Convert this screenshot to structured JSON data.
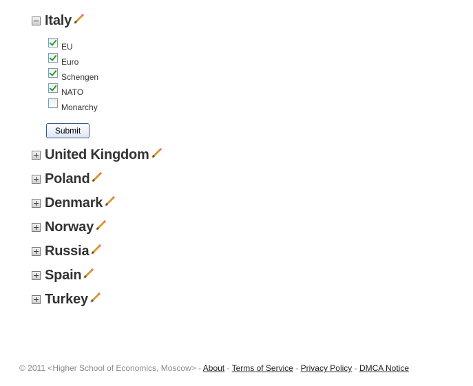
{
  "tree": {
    "expanded_country": {
      "name": "Italy",
      "checkboxes": [
        {
          "label": "EU",
          "checked": true
        },
        {
          "label": "Euro",
          "checked": true
        },
        {
          "label": "Schengen",
          "checked": true
        },
        {
          "label": "NATO",
          "checked": true
        },
        {
          "label": "Monarchy",
          "checked": false
        }
      ],
      "submit_label": "Submit"
    },
    "collapsed_countries": [
      "United Kingdom",
      "Poland",
      "Denmark",
      "Norway",
      "Russia",
      "Spain",
      "Turkey"
    ],
    "edit_icon": "pencil-icon",
    "expand_icon": "plus-box-icon",
    "collapse_icon": "minus-box-icon"
  },
  "footer": {
    "copyright": "© 2011 <Higher School of Economics, Moscow>",
    "separator": " - ",
    "links": [
      "About",
      "Terms of Service",
      "Privacy Policy",
      "DMCA Notice"
    ]
  },
  "colors": {
    "text": "#333333",
    "check": "#21a121",
    "footer_text": "#888888",
    "button_border": "#3c5a8a"
  }
}
